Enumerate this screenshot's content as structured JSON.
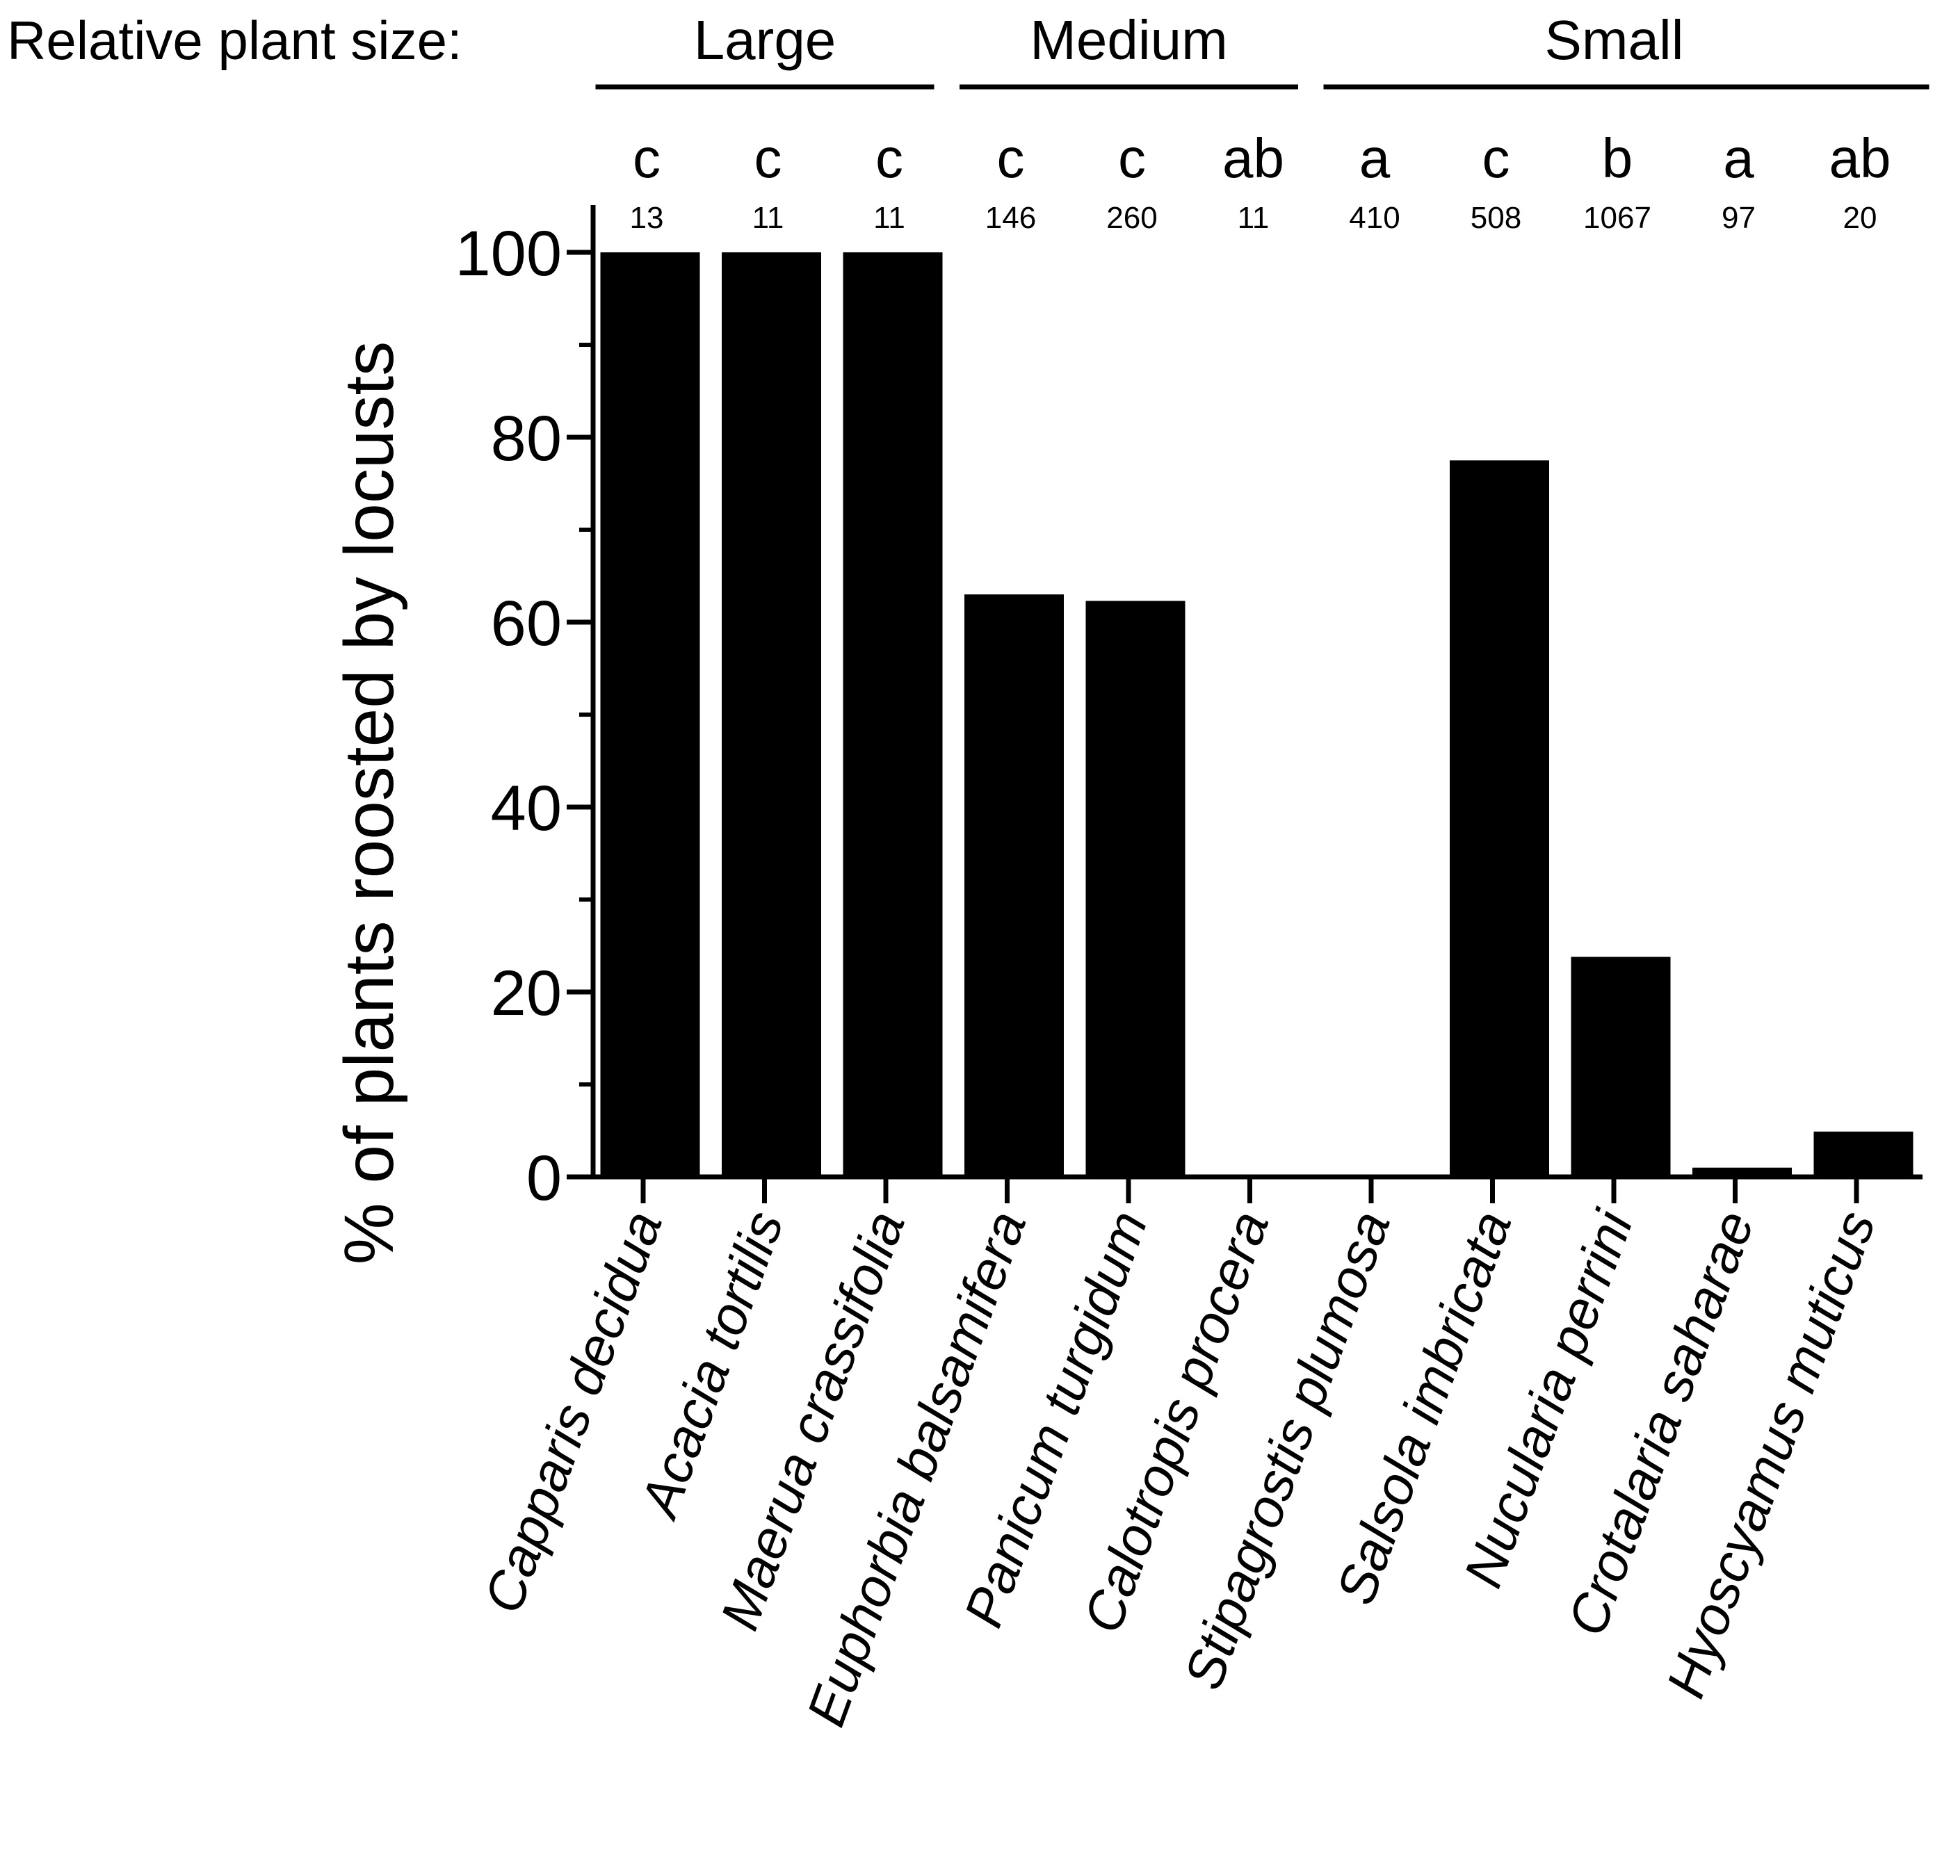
{
  "chart_data": {
    "type": "bar",
    "size_header": {
      "prefix": "Relative plant size:",
      "groups": [
        {
          "label": "Large",
          "from": 0,
          "to": 2
        },
        {
          "label": "Medium",
          "from": 3,
          "to": 5
        },
        {
          "label": "Small",
          "from": 6,
          "to": 10
        }
      ]
    },
    "categories": [
      "Capparis decidua",
      "Acacia tortilis",
      "Maerua crassifolia",
      "Euphorbia balsamifera",
      "Panicum turgidum",
      "Calotropis procera",
      "Stipagrostis plumosa",
      "Salsola imbricata",
      "Nucularia perrini",
      "Crotalaria saharae",
      "Hyoscyamus muticus"
    ],
    "values": [
      100,
      100,
      100,
      63,
      62.3,
      0,
      0,
      77.5,
      23.8,
      1,
      4.9
    ],
    "significance_letters": [
      "c",
      "c",
      "c",
      "c",
      "c",
      "ab",
      "a",
      "c",
      "b",
      "a",
      "ab"
    ],
    "sample_sizes": [
      "13",
      "11",
      "11",
      "146",
      "260",
      "11",
      "410",
      "508",
      "1067",
      "97",
      "20"
    ],
    "ylabel": "% of plants roosted by locusts",
    "xlabel": "",
    "ylim": [
      0,
      100
    ],
    "yticks": [
      "0",
      "20",
      "40",
      "60",
      "80",
      "100"
    ],
    "grid": false,
    "colors": {
      "bar": "#000000",
      "axis": "#000000",
      "background": "#ffffff"
    }
  }
}
